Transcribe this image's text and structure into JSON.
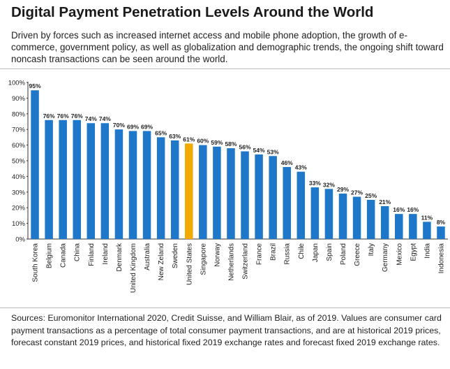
{
  "title": "Digital Payment Penetration Levels Around the World",
  "subtitle": "Driven by forces such as increased internet access and mobile phone adoption, the growth of e-commerce, government policy, as well as globalization and demographic trends, the ongoing shift toward noncash transactions can be seen around the world.",
  "sources": "Sources: Euromonitor International 2020, Credit Suisse, and William Blair, as of 2019. Values are consumer card payment transactions as a percentage of total consumer payment transactions, and are at historical 2019 prices, forecast constant 2019 prices, and historical fixed 2019 exchange rates and forecast fixed 2019 exchange rates.",
  "colors": {
    "bar": "#1f77c9",
    "highlight": "#f2a900",
    "axis": "#333333",
    "grid": "#e0e0e0"
  },
  "chart_data": {
    "type": "bar",
    "title": "",
    "xlabel": "",
    "ylabel": "",
    "ylim": [
      0,
      100
    ],
    "yticks": [
      "0%",
      "10%",
      "20%",
      "30%",
      "40%",
      "50%",
      "60%",
      "70%",
      "80%",
      "90%",
      "100%"
    ],
    "highlight_category": "United States",
    "categories": [
      "South Korea",
      "Belgium",
      "Canada",
      "China",
      "Finland",
      "Ireland",
      "Denmark",
      "United Kingdom",
      "Australia",
      "New Zeland",
      "Sweden",
      "United States",
      "Singapore",
      "Norway",
      "Netherlands",
      "Switzerland",
      "France",
      "Brazil",
      "Russia",
      "Chile",
      "Japan",
      "Spain",
      "Poland",
      "Greece",
      "Italy",
      "Germany",
      "Mexico",
      "Egypt",
      "India",
      "Indonesia"
    ],
    "values": [
      95,
      76,
      76,
      76,
      74,
      74,
      70,
      69,
      69,
      65,
      63,
      61,
      60,
      59,
      58,
      56,
      54,
      53,
      46,
      43,
      33,
      32,
      29,
      27,
      25,
      21,
      16,
      16,
      11,
      8
    ],
    "labels": [
      "95%",
      "76%",
      "76%",
      "76%",
      "74%",
      "74%",
      "70%",
      "69%",
      "69%",
      "65%",
      "63%",
      "61%",
      "60%",
      "59%",
      "58%",
      "56%",
      "54%",
      "53%",
      "46%",
      "43%",
      "33%",
      "32%",
      "29%",
      "27%",
      "25%",
      "21%",
      "16%",
      "16%",
      "11%",
      "8%"
    ]
  }
}
